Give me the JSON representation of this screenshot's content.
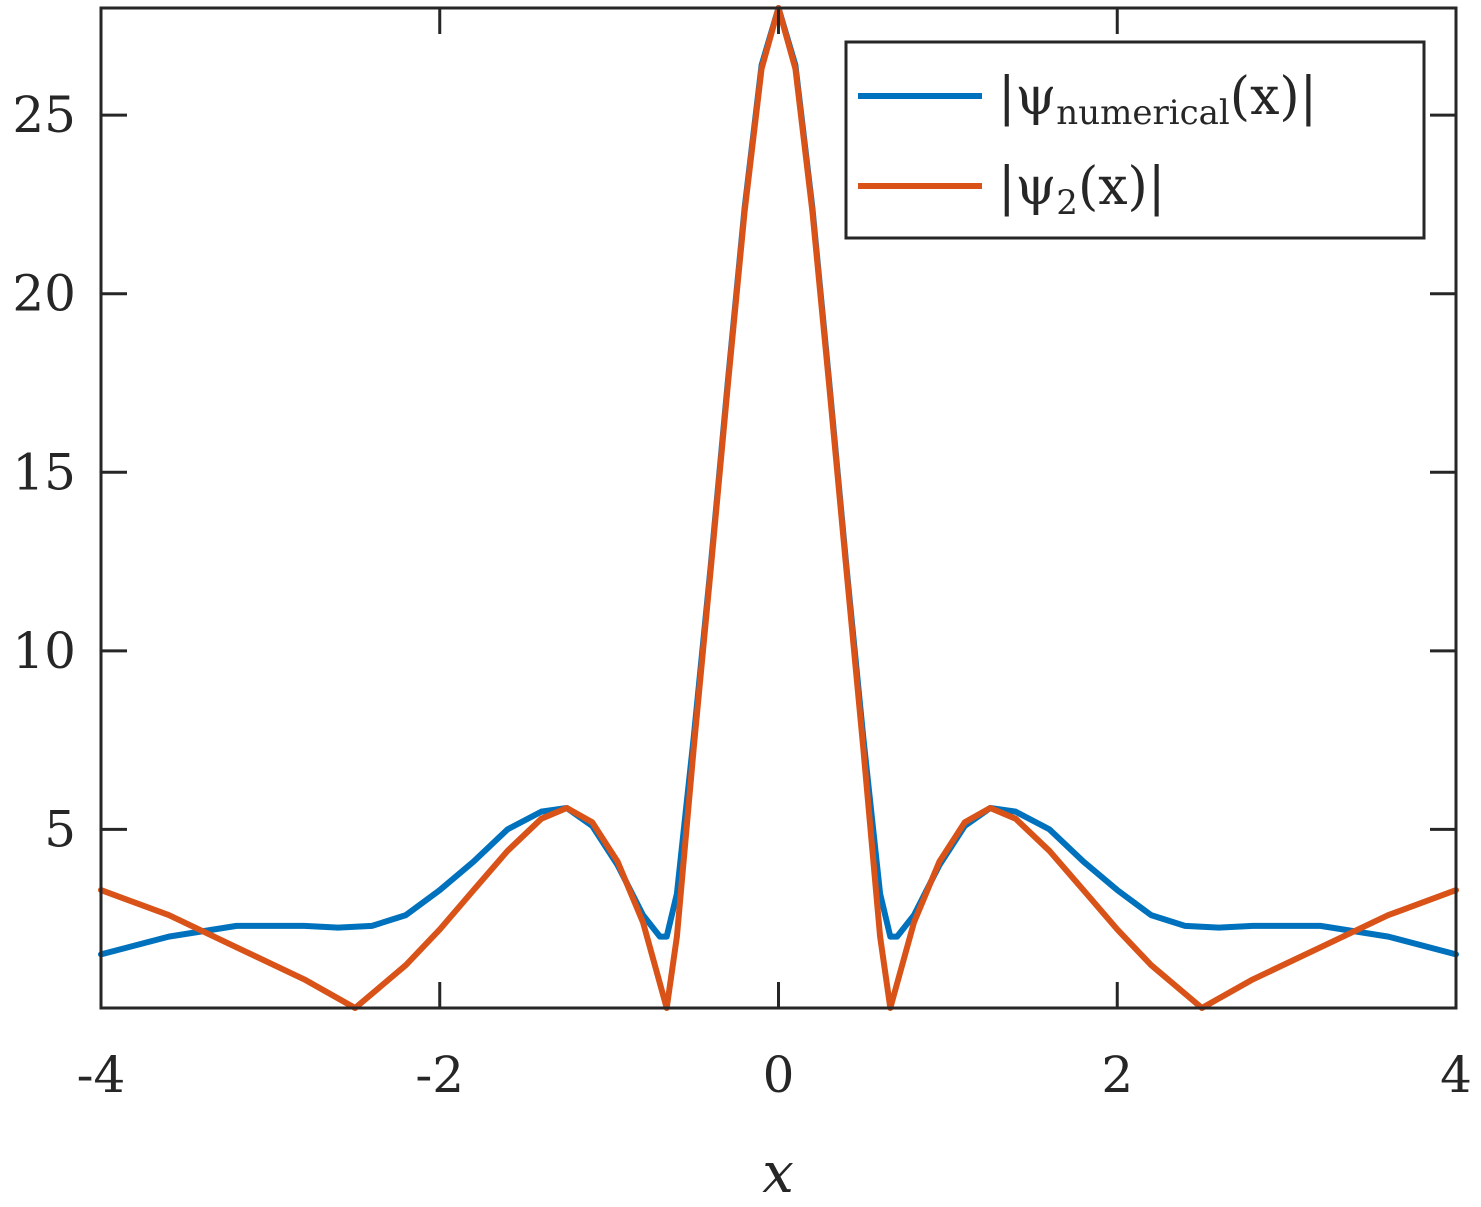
{
  "chart_data": {
    "type": "line",
    "xlabel": "x",
    "ylabel": "",
    "xlim": [
      -4,
      4
    ],
    "ylim": [
      0,
      28
    ],
    "xticks": [
      -4,
      -2,
      0,
      2,
      4
    ],
    "xtick_labels": [
      "-4",
      "-2",
      "0",
      "2",
      "4"
    ],
    "yticks": [
      5,
      10,
      15,
      20,
      25
    ],
    "ytick_labels": [
      "5",
      "10",
      "15",
      "20",
      "25"
    ],
    "grid": false,
    "legend_position": "top-right",
    "series": [
      {
        "name": "|ψnumerical(x)|",
        "legend_parts": {
          "pre": "|ψ",
          "sub": "numerical",
          "post": "(x)|"
        },
        "color": "#0072BD",
        "x": [
          -4.0,
          -3.6,
          -3.2,
          -2.8,
          -2.6,
          -2.4,
          -2.2,
          -2.0,
          -1.8,
          -1.6,
          -1.4,
          -1.25,
          -1.1,
          -0.95,
          -0.8,
          -0.7,
          -0.66,
          -0.6,
          -0.5,
          -0.4,
          -0.3,
          -0.2,
          -0.1,
          0.0,
          0.1,
          0.2,
          0.3,
          0.4,
          0.5,
          0.6,
          0.66,
          0.7,
          0.8,
          0.95,
          1.1,
          1.25,
          1.4,
          1.6,
          1.8,
          2.0,
          2.2,
          2.4,
          2.6,
          2.8,
          3.2,
          3.6,
          4.0
        ],
        "y": [
          1.5,
          2.0,
          2.3,
          2.3,
          2.25,
          2.3,
          2.6,
          3.3,
          4.1,
          5.0,
          5.5,
          5.6,
          5.1,
          4.0,
          2.6,
          2.0,
          2.0,
          3.2,
          7.6,
          12.4,
          17.5,
          22.4,
          26.4,
          28.0,
          26.4,
          22.4,
          17.5,
          12.4,
          7.6,
          3.2,
          2.0,
          2.0,
          2.6,
          4.0,
          5.1,
          5.6,
          5.5,
          5.0,
          4.1,
          3.3,
          2.6,
          2.3,
          2.25,
          2.3,
          2.3,
          2.0,
          1.5
        ]
      },
      {
        "name": "|ψ2(x)|",
        "legend_parts": {
          "pre": "|ψ",
          "sub": "2",
          "post": "(x)|"
        },
        "color": "#D95319",
        "x": [
          -4.0,
          -3.6,
          -3.2,
          -2.8,
          -2.5,
          -2.2,
          -2.0,
          -1.8,
          -1.6,
          -1.4,
          -1.25,
          -1.1,
          -0.95,
          -0.8,
          -0.66,
          -0.6,
          -0.5,
          -0.4,
          -0.3,
          -0.2,
          -0.1,
          0.0,
          0.1,
          0.2,
          0.3,
          0.4,
          0.5,
          0.6,
          0.66,
          0.8,
          0.95,
          1.1,
          1.25,
          1.4,
          1.6,
          1.8,
          2.0,
          2.2,
          2.5,
          2.8,
          3.2,
          3.6,
          4.0
        ],
        "y": [
          3.3,
          2.6,
          1.7,
          0.8,
          0.0,
          1.2,
          2.2,
          3.3,
          4.4,
          5.3,
          5.6,
          5.2,
          4.1,
          2.4,
          0.0,
          2.0,
          7.3,
          12.3,
          17.4,
          22.3,
          26.3,
          28.0,
          26.3,
          22.3,
          17.4,
          12.3,
          7.3,
          2.0,
          0.0,
          2.4,
          4.1,
          5.2,
          5.6,
          5.3,
          4.4,
          3.3,
          2.2,
          1.2,
          0.0,
          0.8,
          1.7,
          2.6,
          3.3
        ]
      }
    ]
  }
}
